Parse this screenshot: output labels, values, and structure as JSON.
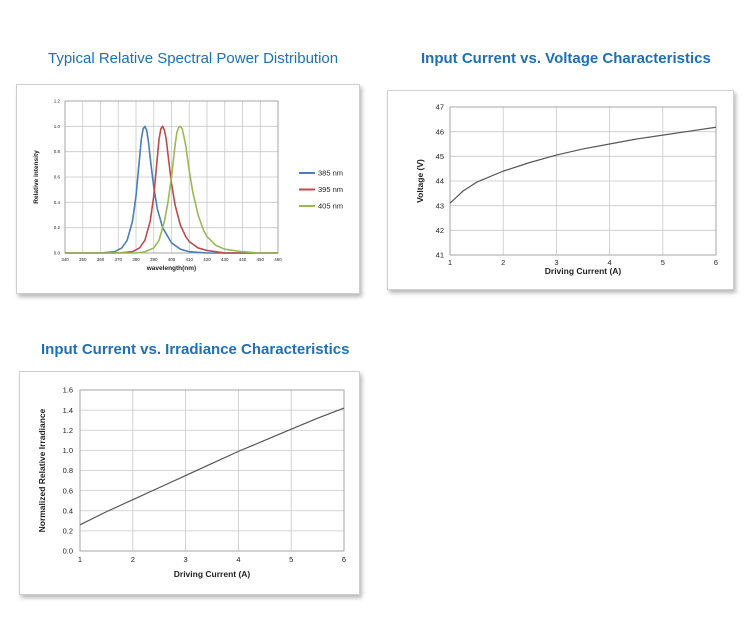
{
  "chart_data": [
    {
      "type": "line",
      "title": "Typical Relative Spectral Power Distribution",
      "xlabel": "wavelength(nm)",
      "ylabel": "Relative intensity",
      "xlim": [
        340,
        460
      ],
      "ylim": [
        0,
        1.2
      ],
      "x_ticks": [
        "340",
        "350",
        "360",
        "370",
        "380",
        "390",
        "400",
        "410",
        "420",
        "430",
        "440",
        "450",
        "460"
      ],
      "y_ticks": [
        "0.0",
        "0.2",
        "0.4",
        "0.6",
        "0.8",
        "1.0",
        "1.2"
      ],
      "grid": true,
      "legend": "right",
      "series": [
        {
          "name": "385 nm",
          "color": "#4a7ebb",
          "x": [
            340,
            360,
            368,
            372,
            375,
            378,
            380,
            382,
            383,
            384,
            385,
            386,
            387,
            388,
            390,
            392,
            395,
            400,
            405,
            410,
            420,
            440,
            460
          ],
          "y": [
            0,
            0,
            0.01,
            0.04,
            0.1,
            0.25,
            0.45,
            0.75,
            0.9,
            0.98,
            1.0,
            0.97,
            0.88,
            0.75,
            0.52,
            0.35,
            0.2,
            0.08,
            0.03,
            0.01,
            0,
            0,
            0
          ]
        },
        {
          "name": "395 nm",
          "color": "#be4b48",
          "x": [
            340,
            370,
            378,
            382,
            385,
            388,
            390,
            392,
            393,
            394,
            395,
            396,
            397,
            398,
            400,
            402,
            405,
            408,
            410,
            415,
            420,
            430,
            460
          ],
          "y": [
            0,
            0,
            0.01,
            0.04,
            0.1,
            0.25,
            0.45,
            0.75,
            0.9,
            0.98,
            1.0,
            0.97,
            0.9,
            0.78,
            0.55,
            0.38,
            0.22,
            0.13,
            0.09,
            0.04,
            0.02,
            0,
            0
          ]
        },
        {
          "name": "405 nm",
          "color": "#98b954",
          "x": [
            340,
            380,
            385,
            390,
            393,
            396,
            398,
            400,
            402,
            403,
            404,
            405,
            406,
            407,
            408,
            410,
            412,
            415,
            418,
            420,
            425,
            430,
            440,
            450,
            460
          ],
          "y": [
            0,
            0,
            0.01,
            0.04,
            0.1,
            0.25,
            0.4,
            0.6,
            0.85,
            0.95,
            0.99,
            1.0,
            0.98,
            0.92,
            0.85,
            0.65,
            0.48,
            0.3,
            0.18,
            0.13,
            0.06,
            0.03,
            0.01,
            0,
            0
          ]
        }
      ]
    },
    {
      "type": "line",
      "title": "Input Current vs. Voltage Characteristics",
      "xlabel": "Driving Current (A)",
      "ylabel": "Voltage (V)",
      "xlim": [
        1,
        6
      ],
      "ylim": [
        41,
        47
      ],
      "x_ticks": [
        "1",
        "2",
        "3",
        "4",
        "5",
        "6"
      ],
      "y_ticks": [
        "41",
        "42",
        "43",
        "44",
        "45",
        "46",
        "47"
      ],
      "grid": true,
      "series": [
        {
          "color": "#555555",
          "x": [
            1,
            1.25,
            1.5,
            2,
            2.5,
            3,
            3.5,
            4,
            4.5,
            5,
            5.5,
            6
          ],
          "y": [
            43.1,
            43.6,
            43.95,
            44.4,
            44.75,
            45.05,
            45.3,
            45.5,
            45.7,
            45.86,
            46.02,
            46.18
          ]
        }
      ]
    },
    {
      "type": "line",
      "title": "Input Current vs. Irradiance Characteristics",
      "xlabel": "Driving Current (A)",
      "ylabel": "Normalized Relative Irradiance",
      "xlim": [
        1,
        6
      ],
      "ylim": [
        0,
        1.6
      ],
      "x_ticks": [
        "1",
        "2",
        "3",
        "4",
        "5",
        "6"
      ],
      "y_ticks": [
        "0.0",
        "0.2",
        "0.4",
        "0.6",
        "0.8",
        "1.0",
        "1.2",
        "1.4",
        "1.6"
      ],
      "grid": true,
      "series": [
        {
          "color": "#555555",
          "x": [
            1,
            1.5,
            2,
            2.5,
            3,
            3.5,
            4,
            4.5,
            5,
            5.5,
            6
          ],
          "y": [
            0.26,
            0.39,
            0.51,
            0.63,
            0.75,
            0.87,
            0.99,
            1.1,
            1.21,
            1.32,
            1.42
          ]
        }
      ]
    }
  ]
}
